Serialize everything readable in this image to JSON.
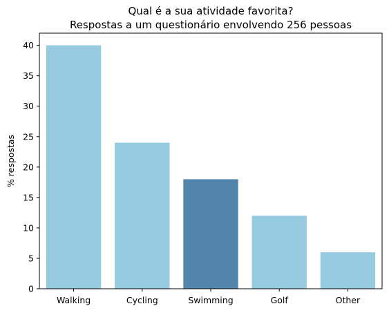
{
  "chart_data": {
    "type": "bar",
    "title": [
      "Qual é a sua atividade favorita?",
      "Respostas a um questionário envolvendo 256 pessoas"
    ],
    "xlabel": "",
    "ylabel": "% respostas",
    "categories": [
      "Walking",
      "Cycling",
      "Swimming",
      "Golf",
      "Other"
    ],
    "values": [
      40,
      24,
      18,
      12,
      6
    ],
    "colors": [
      "#95CAE0",
      "#95CAE0",
      "#5386AA",
      "#95CAE0",
      "#95CAE0"
    ],
    "ylim": [
      0,
      42
    ],
    "yticks": [
      0,
      5,
      10,
      15,
      20,
      25,
      30,
      35,
      40
    ],
    "grid": false,
    "legend": "none"
  }
}
